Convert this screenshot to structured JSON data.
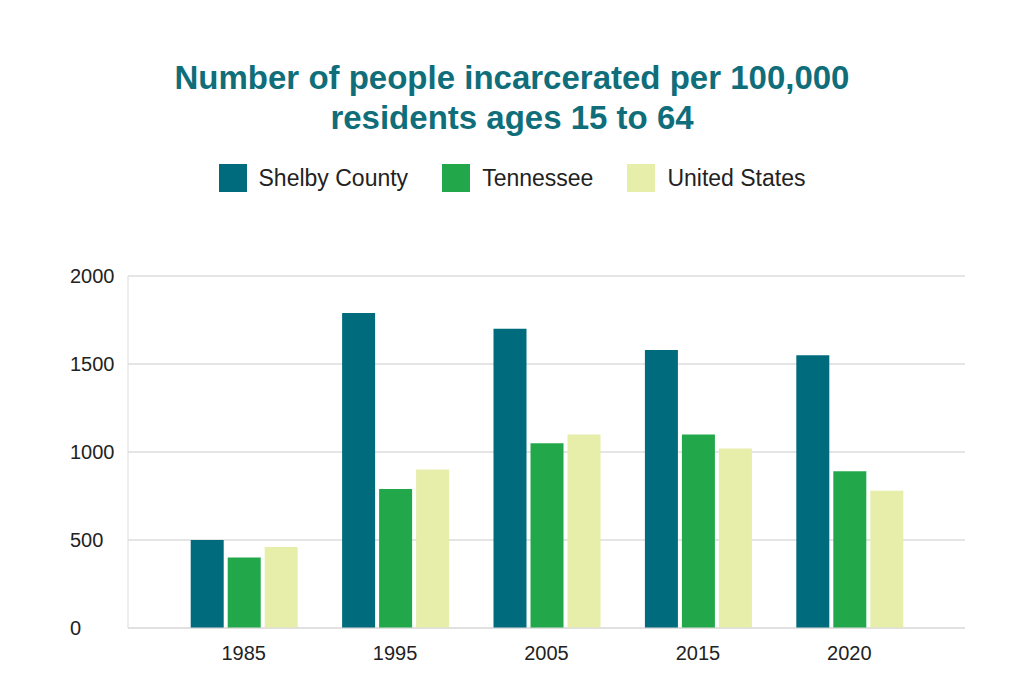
{
  "chart_data": {
    "type": "bar",
    "title": "Number of people incarcerated per 100,000 residents ages 15 to 64",
    "categories": [
      "1985",
      "1995",
      "2005",
      "2015",
      "2020"
    ],
    "series": [
      {
        "name": "Shelby County",
        "color": "#006b7d",
        "values": [
          500,
          1790,
          1700,
          1580,
          1550
        ]
      },
      {
        "name": "Tennessee",
        "color": "#22a84a",
        "values": [
          400,
          790,
          1050,
          1100,
          890
        ]
      },
      {
        "name": "United States",
        "color": "#e6eeaa",
        "values": [
          460,
          900,
          1100,
          1020,
          780
        ]
      }
    ],
    "ylim": [
      0,
      2000
    ],
    "yticks": [
      0,
      500,
      1000,
      1500,
      2000
    ],
    "grid": true,
    "legend": "top"
  }
}
